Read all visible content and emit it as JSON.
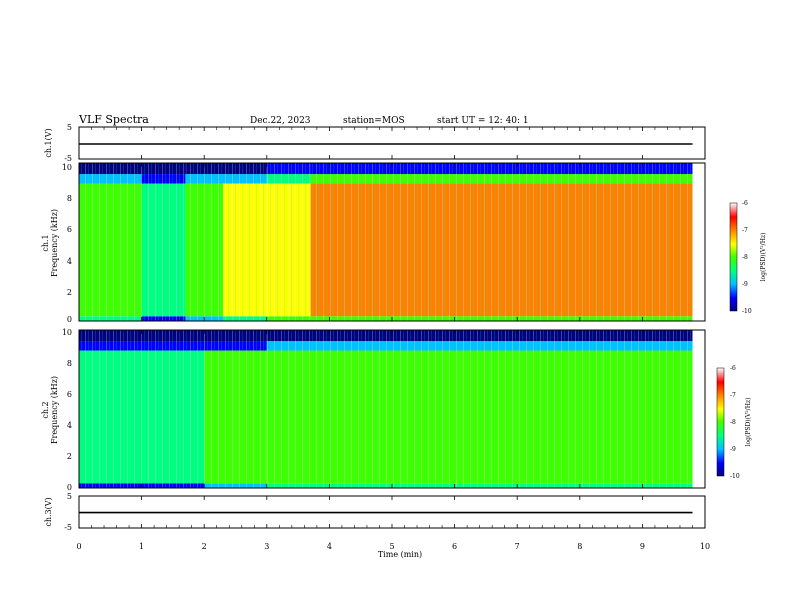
{
  "header": {
    "title": "VLF Spectra",
    "date": "Dec.22, 2023",
    "station": "station=MOS",
    "start": "start  UT =   12: 40: 1"
  },
  "colors": {
    "spectrogram_scale": [
      "#000080",
      "#0000ff",
      "#00c0ff",
      "#00ff80",
      "#40ff00",
      "#ffff00",
      "#ff8000",
      "#ff0000",
      "#ffffff"
    ],
    "trace": "#000000",
    "frame": "#000000",
    "background": "#ffffff"
  },
  "chart_data": [
    {
      "type": "line",
      "name": "ch1-waveform",
      "ylabel": "ch.1(V)",
      "ylim": [
        -5,
        5
      ],
      "yticks": [
        "5",
        "-5"
      ],
      "x": [
        0,
        1,
        2,
        3,
        4,
        5,
        6,
        7,
        8,
        9,
        9.8
      ],
      "values": [
        -0.3,
        -0.3,
        -0.3,
        -0.3,
        -0.3,
        -0.3,
        -0.3,
        -0.3,
        -0.3,
        -0.3,
        -0.3
      ]
    },
    {
      "type": "heatmap",
      "name": "ch1-spectrogram",
      "ylabel": "ch.1\nFrequency (kHz)",
      "ylabel_line1": "ch.1",
      "ylabel_line2": "Frequency (kHz)",
      "ylim": [
        0,
        10
      ],
      "yticks": [
        "0",
        "2",
        "4",
        "6",
        "8",
        "10"
      ],
      "xlim": [
        0,
        9.8
      ],
      "colorbar": {
        "label": "log(PSD)(V²/Hz)",
        "range": [
          -10,
          -6
        ],
        "ticks": [
          "-6",
          "-7",
          "-8",
          "-9",
          "-10"
        ]
      },
      "regions": [
        {
          "t_start": 0.0,
          "t_end": 1.0,
          "level": -7.6
        },
        {
          "t_start": 1.0,
          "t_end": 1.7,
          "level": -8.4
        },
        {
          "t_start": 1.7,
          "t_end": 2.3,
          "level": -7.9
        },
        {
          "t_start": 2.3,
          "t_end": 3.0,
          "level": -7.4
        },
        {
          "t_start": 3.0,
          "t_end": 3.7,
          "level": -7.0
        },
        {
          "t_start": 3.7,
          "t_end": 9.8,
          "level": -6.7
        }
      ]
    },
    {
      "type": "heatmap",
      "name": "ch2-spectrogram",
      "ylabel": "ch.2\nFrequency (kHz)",
      "ylabel_line1": "ch.2",
      "ylabel_line2": "Frequency (kHz)",
      "ylim": [
        0,
        10
      ],
      "yticks": [
        "0",
        "2",
        "4",
        "6",
        "8",
        "10"
      ],
      "xlim": [
        0,
        9.8
      ],
      "colorbar": {
        "label": "log(PSD)(V²/Hz)",
        "range": [
          -10,
          -6
        ],
        "ticks": [
          "-6",
          "-7",
          "-8",
          "-9",
          "-10"
        ]
      },
      "regions": [
        {
          "t_start": 0.0,
          "t_end": 2.0,
          "level": -8.3
        },
        {
          "t_start": 2.0,
          "t_end": 3.0,
          "level": -8.0
        },
        {
          "t_start": 3.0,
          "t_end": 9.8,
          "level": -7.6
        }
      ]
    },
    {
      "type": "line",
      "name": "ch3-waveform",
      "ylabel": "ch.3(V)",
      "ylim": [
        -5,
        5
      ],
      "yticks": [
        "5",
        "-5"
      ],
      "x": [
        0,
        1,
        2,
        3,
        4,
        5,
        6,
        7,
        8,
        9,
        9.8
      ],
      "values": [
        -0.2,
        -0.2,
        -0.2,
        -0.2,
        -0.2,
        -0.2,
        -0.2,
        -0.2,
        -0.2,
        -0.2,
        -0.2
      ]
    }
  ],
  "xaxis": {
    "label": "Time  (min)",
    "xlim": [
      0,
      10
    ],
    "ticks": [
      "0",
      "1",
      "2",
      "3",
      "4",
      "5",
      "6",
      "7",
      "8",
      "9",
      "10"
    ]
  }
}
